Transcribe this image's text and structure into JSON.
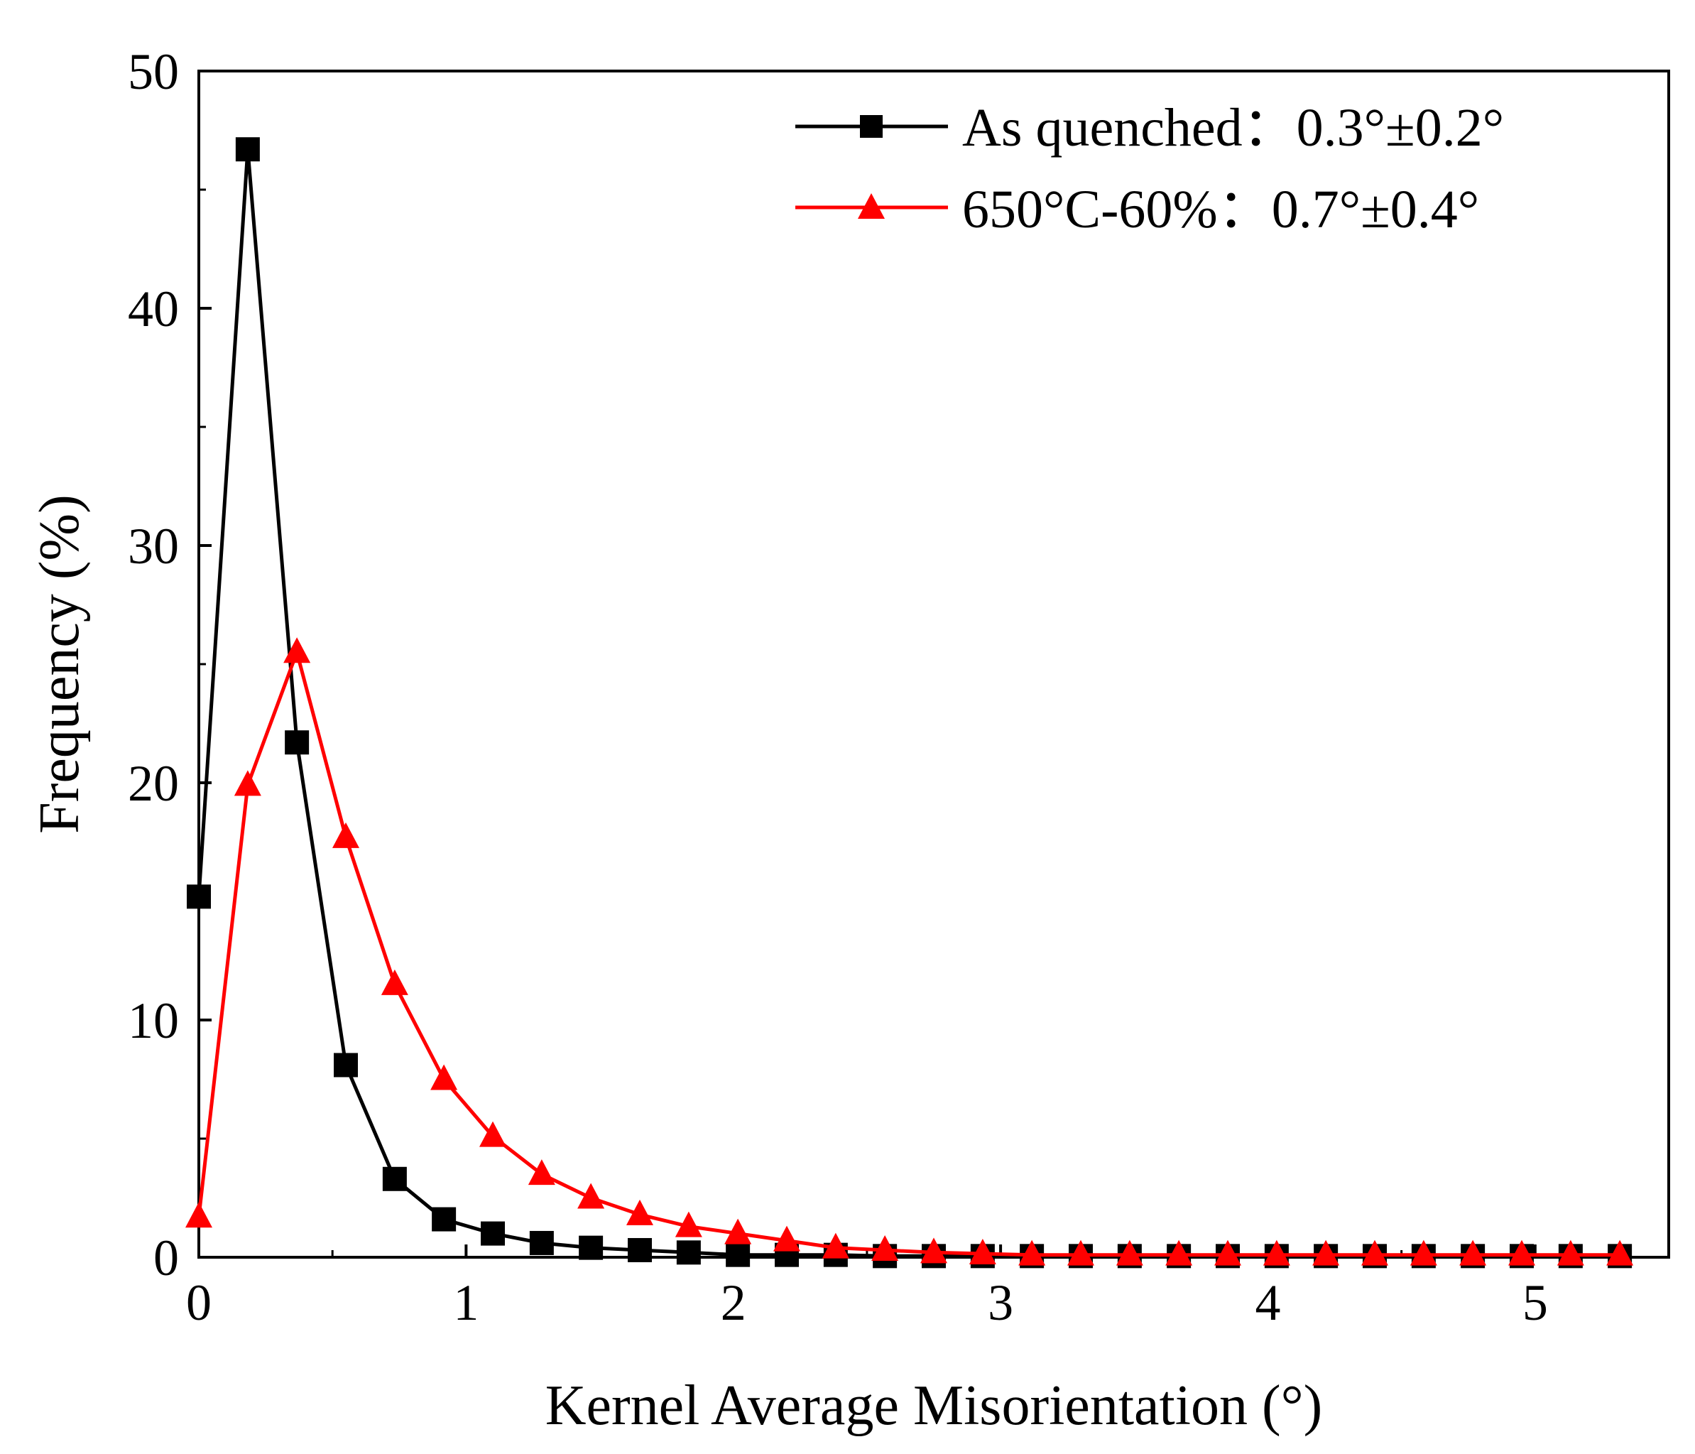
{
  "chart_data": {
    "type": "line",
    "title": "",
    "xlabel": "Kernel Average Misorientation (°)",
    "ylabel": "Frequency (%)",
    "xlim": [
      0,
      5.5
    ],
    "ylim": [
      0,
      50
    ],
    "xticks": [
      0,
      1,
      2,
      3,
      4,
      5
    ],
    "yticks": [
      0,
      10,
      20,
      30,
      40,
      50
    ],
    "grid": false,
    "legend_position": "top-right",
    "x": [
      0.0,
      0.183,
      0.367,
      0.55,
      0.733,
      0.917,
      1.1,
      1.283,
      1.467,
      1.65,
      1.833,
      2.017,
      2.2,
      2.383,
      2.567,
      2.75,
      2.933,
      3.117,
      3.3,
      3.483,
      3.667,
      3.85,
      4.033,
      4.217,
      4.4,
      4.583,
      4.767,
      4.95,
      5.133,
      5.317
    ],
    "series": [
      {
        "name": "As quenched：0.3°±0.2°",
        "color": "#000000",
        "marker": "square",
        "values": [
          15.2,
          46.7,
          21.7,
          8.1,
          3.3,
          1.6,
          1.0,
          0.6,
          0.4,
          0.3,
          0.2,
          0.1,
          0.1,
          0.1,
          0.05,
          0.05,
          0.05,
          0.05,
          0.05,
          0.05,
          0.05,
          0.05,
          0.05,
          0.05,
          0.05,
          0.05,
          0.05,
          0.05,
          0.05,
          0.05
        ]
      },
      {
        "name": "650°C-60%：0.7°±0.4°",
        "color": "#ff0000",
        "marker": "triangle",
        "values": [
          1.7,
          19.9,
          25.5,
          17.7,
          11.5,
          7.5,
          5.1,
          3.5,
          2.5,
          1.8,
          1.3,
          1.0,
          0.7,
          0.4,
          0.3,
          0.2,
          0.15,
          0.1,
          0.1,
          0.1,
          0.1,
          0.1,
          0.1,
          0.1,
          0.1,
          0.1,
          0.1,
          0.1,
          0.1,
          0.1
        ]
      }
    ]
  }
}
